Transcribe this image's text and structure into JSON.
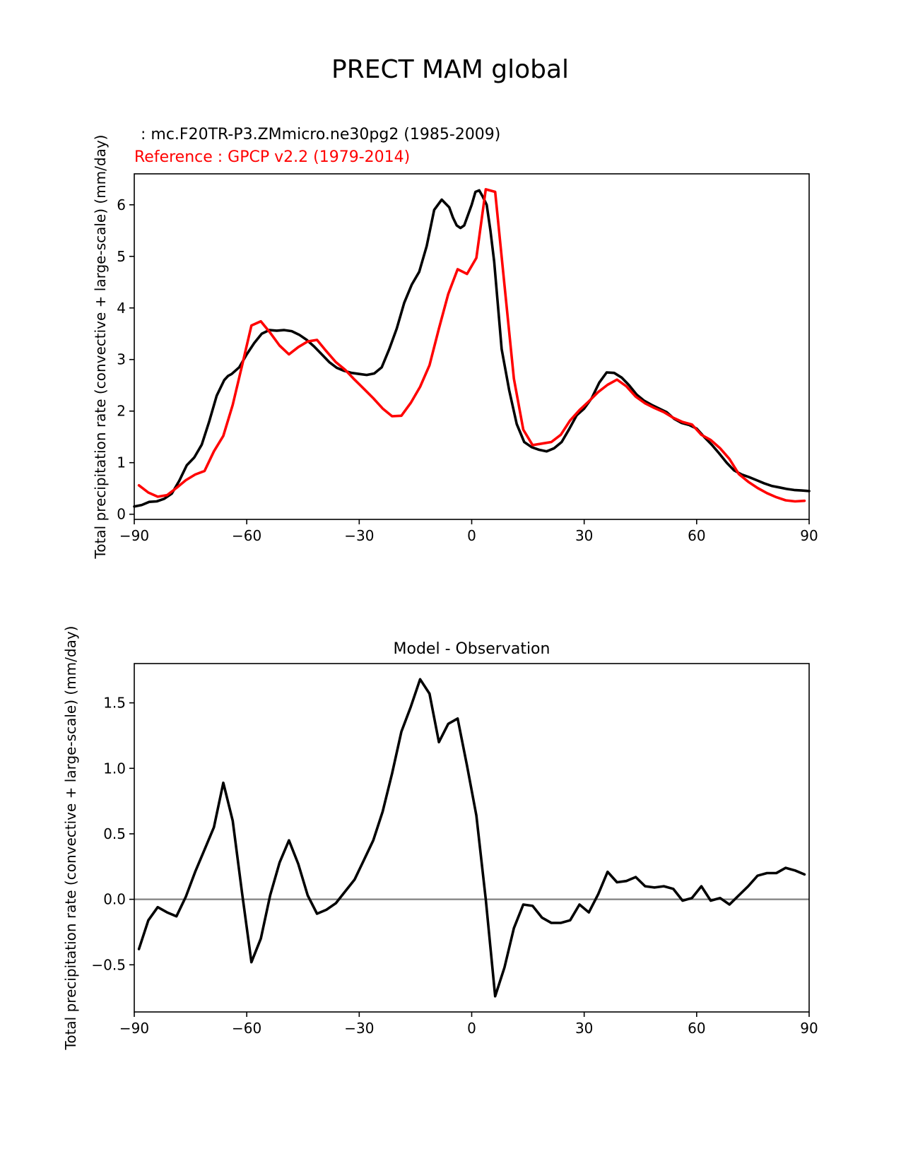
{
  "figure": {
    "suptitle": "PRECT MAM global",
    "test_label": " : mc.F20TR-P3.ZMmicro.ne30pg2 (1985-2009)",
    "ref_label": "Reference : GPCP v2.2 (1979-2014)"
  },
  "colors": {
    "test": "#000000",
    "reference": "#ff0000",
    "diff": "#000000",
    "zero_line": "#808080"
  },
  "chart_data": [
    {
      "type": "line",
      "title": "",
      "xlabel": "",
      "ylabel": "Total precipitation rate (convective + large-scale) (mm/day)",
      "xlim": [
        -90,
        90
      ],
      "ylim": [
        -0.1,
        6.6
      ],
      "xticks": [
        -90,
        -60,
        -30,
        0,
        30,
        60,
        90
      ],
      "xtick_labels": [
        "−90",
        "−60",
        "−30",
        "0",
        "30",
        "60",
        "90"
      ],
      "yticks": [
        0,
        1,
        2,
        3,
        4,
        5,
        6
      ],
      "ytick_labels": [
        "0",
        "1",
        "2",
        "3",
        "4",
        "5",
        "6"
      ],
      "series": [
        {
          "role": "test",
          "x": [
            -90,
            -88,
            -86,
            -84,
            -82,
            -80,
            -78,
            -76,
            -74,
            -72,
            -70,
            -68,
            -66,
            -65,
            -64,
            -62,
            -60,
            -58,
            -56,
            -54,
            -52,
            -50,
            -48,
            -46,
            -44,
            -42,
            -40,
            -38,
            -36,
            -34,
            -32,
            -30,
            -28,
            -26,
            -24,
            -22,
            -20,
            -18,
            -16,
            -14,
            -12,
            -10,
            -8,
            -6,
            -5,
            -4,
            -3,
            -2,
            -1,
            0,
            1,
            2,
            3,
            4,
            5,
            6,
            8,
            10,
            12,
            14,
            16,
            18,
            20,
            22,
            24,
            26,
            28,
            30,
            32,
            34,
            36,
            38,
            40,
            42,
            44,
            46,
            48,
            50,
            52,
            54,
            56,
            58,
            60,
            62,
            64,
            66,
            68,
            70,
            72,
            74,
            76,
            78,
            80,
            82,
            84,
            86,
            88,
            90
          ],
          "values": [
            0.15,
            0.18,
            0.24,
            0.25,
            0.3,
            0.4,
            0.65,
            0.95,
            1.1,
            1.35,
            1.8,
            2.3,
            2.6,
            2.68,
            2.72,
            2.85,
            3.1,
            3.32,
            3.5,
            3.57,
            3.56,
            3.57,
            3.55,
            3.48,
            3.38,
            3.25,
            3.1,
            2.95,
            2.84,
            2.78,
            2.74,
            2.72,
            2.7,
            2.73,
            2.85,
            3.2,
            3.6,
            4.1,
            4.45,
            4.7,
            5.2,
            5.9,
            6.1,
            5.95,
            5.75,
            5.6,
            5.55,
            5.6,
            5.8,
            6.0,
            6.25,
            6.28,
            6.15,
            6.0,
            5.5,
            4.9,
            3.2,
            2.4,
            1.75,
            1.4,
            1.3,
            1.25,
            1.22,
            1.28,
            1.4,
            1.65,
            1.92,
            2.05,
            2.25,
            2.55,
            2.75,
            2.74,
            2.65,
            2.5,
            2.32,
            2.2,
            2.12,
            2.05,
            1.98,
            1.85,
            1.77,
            1.73,
            1.66,
            1.5,
            1.35,
            1.18,
            1.0,
            0.85,
            0.77,
            0.72,
            0.66,
            0.6,
            0.55,
            0.52,
            0.49,
            0.47,
            0.46,
            0.45
          ]
        },
        {
          "role": "reference",
          "x": [
            -88.75,
            -86.25,
            -83.75,
            -81.25,
            -78.75,
            -76.25,
            -73.75,
            -71.25,
            -68.75,
            -66.25,
            -63.75,
            -61.25,
            -58.75,
            -56.25,
            -53.75,
            -51.25,
            -48.75,
            -46.25,
            -43.75,
            -41.25,
            -38.75,
            -36.25,
            -33.75,
            -31.25,
            -28.75,
            -26.25,
            -23.75,
            -21.25,
            -18.75,
            -16.25,
            -13.75,
            -11.25,
            -8.75,
            -6.25,
            -3.75,
            -1.25,
            1.25,
            3.75,
            6.25,
            8.75,
            11.25,
            13.75,
            16.25,
            18.75,
            21.25,
            23.75,
            26.25,
            28.75,
            31.25,
            33.75,
            36.25,
            38.75,
            41.25,
            43.75,
            46.25,
            48.75,
            51.25,
            53.75,
            56.25,
            58.75,
            61.25,
            63.75,
            66.25,
            68.75,
            71.25,
            73.75,
            76.25,
            78.75,
            81.25,
            83.75,
            86.25,
            88.75
          ],
          "values": [
            0.56,
            0.42,
            0.34,
            0.37,
            0.51,
            0.66,
            0.77,
            0.84,
            1.22,
            1.52,
            2.12,
            2.88,
            3.66,
            3.74,
            3.52,
            3.27,
            3.1,
            3.24,
            3.35,
            3.38,
            3.16,
            2.95,
            2.8,
            2.61,
            2.43,
            2.25,
            2.05,
            1.9,
            1.91,
            2.16,
            2.47,
            2.89,
            3.6,
            4.27,
            4.75,
            4.66,
            4.97,
            6.3,
            6.25,
            4.44,
            2.63,
            1.64,
            1.34,
            1.37,
            1.4,
            1.54,
            1.82,
            2.02,
            2.19,
            2.37,
            2.51,
            2.61,
            2.48,
            2.28,
            2.15,
            2.06,
            1.98,
            1.87,
            1.79,
            1.74,
            1.54,
            1.44,
            1.28,
            1.07,
            0.78,
            0.63,
            0.51,
            0.41,
            0.33,
            0.27,
            0.25,
            0.26
          ]
        }
      ]
    },
    {
      "type": "line",
      "title": "Model - Observation",
      "xlabel": "",
      "ylabel": "Total precipitation rate (convective + large-scale) (mm/day)",
      "xlim": [
        -90,
        90
      ],
      "ylim": [
        -0.86,
        1.8
      ],
      "xticks": [
        -90,
        -60,
        -30,
        0,
        30,
        60,
        90
      ],
      "xtick_labels": [
        "−90",
        "−60",
        "−30",
        "0",
        "30",
        "60",
        "90"
      ],
      "yticks": [
        -0.5,
        0.0,
        0.5,
        1.0,
        1.5
      ],
      "ytick_labels": [
        "−0.5",
        "0.0",
        "0.5",
        "1.0",
        "1.5"
      ],
      "zero_line": 0,
      "series": [
        {
          "role": "difference",
          "x": [
            -88.75,
            -86.25,
            -83.75,
            -81.25,
            -78.75,
            -76.25,
            -73.75,
            -71.25,
            -68.75,
            -66.25,
            -63.75,
            -61.25,
            -58.75,
            -56.25,
            -53.75,
            -51.25,
            -48.75,
            -46.25,
            -43.75,
            -41.25,
            -38.75,
            -36.25,
            -33.75,
            -31.25,
            -28.75,
            -26.25,
            -23.75,
            -21.25,
            -18.75,
            -16.25,
            -13.75,
            -11.25,
            -8.75,
            -6.25,
            -3.75,
            -1.25,
            1.25,
            3.75,
            6.25,
            8.75,
            11.25,
            13.75,
            16.25,
            18.75,
            21.25,
            23.75,
            26.25,
            28.75,
            31.25,
            33.75,
            36.25,
            38.75,
            41.25,
            43.75,
            46.25,
            48.75,
            51.25,
            53.75,
            56.25,
            58.75,
            61.25,
            63.75,
            66.25,
            68.75,
            71.25,
            73.75,
            76.25,
            78.75,
            81.25,
            83.75,
            86.25,
            88.75
          ],
          "values": [
            -0.38,
            -0.16,
            -0.06,
            -0.1,
            -0.13,
            0.02,
            0.21,
            0.38,
            0.55,
            0.89,
            0.6,
            0.05,
            -0.48,
            -0.3,
            0.03,
            0.28,
            0.45,
            0.27,
            0.03,
            -0.11,
            -0.08,
            -0.03,
            0.06,
            0.15,
            0.3,
            0.45,
            0.67,
            0.96,
            1.28,
            1.47,
            1.68,
            1.57,
            1.2,
            1.34,
            1.38,
            1.02,
            0.64,
            0.0,
            -0.74,
            -0.52,
            -0.22,
            -0.04,
            -0.05,
            -0.14,
            -0.18,
            -0.18,
            -0.16,
            -0.04,
            -0.1,
            0.04,
            0.21,
            0.13,
            0.14,
            0.17,
            0.1,
            0.09,
            0.1,
            0.08,
            -0.01,
            0.01,
            0.1,
            -0.01,
            0.01,
            -0.04,
            0.03,
            0.1,
            0.18,
            0.2,
            0.2,
            0.24,
            0.22,
            0.19
          ]
        }
      ]
    }
  ]
}
